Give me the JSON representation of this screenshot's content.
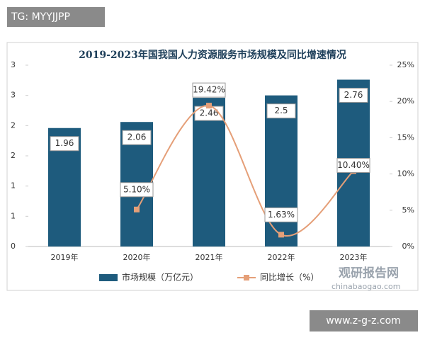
{
  "chart_data": {
    "type": "bar_line",
    "title": "2019-2023年国我国人力资源服务市场规模及同比增速情况",
    "categories": [
      "2019年",
      "2020年",
      "2021年",
      "2022年",
      "2023年"
    ],
    "series": [
      {
        "name": "市场规模（万亿元）",
        "type": "bar",
        "color": "#1e5b7d",
        "values": [
          1.96,
          2.06,
          2.46,
          2.5,
          2.76
        ]
      },
      {
        "name": "同比增长（%）",
        "type": "line",
        "axis": "y2",
        "color": "#e59f78",
        "values": [
          null,
          5.1,
          19.42,
          1.63,
          10.4
        ],
        "value_labels": [
          null,
          "5.10%",
          "19.42%",
          "1.63%",
          "10.40%"
        ]
      }
    ],
    "ylim": [
      0,
      3
    ],
    "yticks": [
      0,
      {
        "value": 0.5,
        "label": "1"
      },
      1,
      {
        "value": 1.5,
        "label": "2"
      },
      2,
      {
        "value": 2.5,
        "label": "3"
      },
      3
    ],
    "y2lim": [
      0,
      25
    ],
    "y2ticks": [
      {
        "value": 0,
        "label": "0%"
      },
      {
        "value": 5,
        "label": "5%"
      },
      {
        "value": 10,
        "label": "10%"
      },
      {
        "value": 15,
        "label": "15%"
      },
      {
        "value": 20,
        "label": "20%"
      },
      {
        "value": 25,
        "label": "25%"
      }
    ],
    "grid": false,
    "legend": "bottom"
  },
  "watermarks": {
    "top_left": "TG: MYYJJPP",
    "bottom_right": "www.z-g-z.com",
    "logo": "观研报告网",
    "logo_url": "chinabaogao.com"
  }
}
